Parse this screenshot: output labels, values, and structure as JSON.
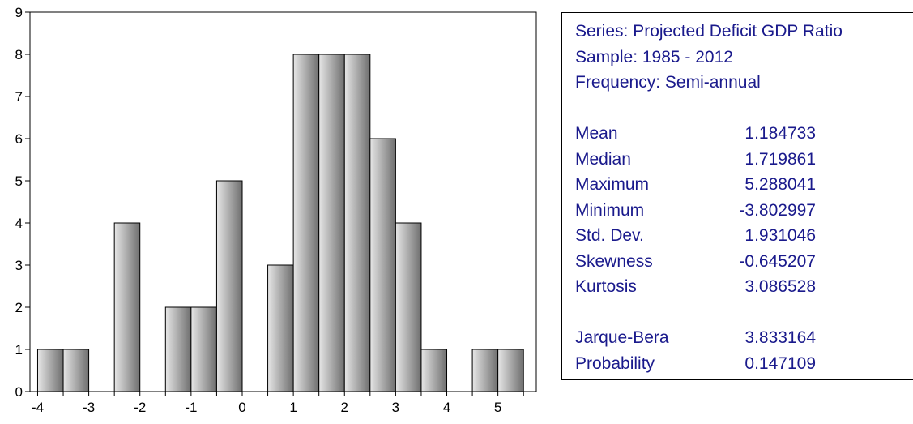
{
  "chart_data": {
    "type": "bar",
    "bins": [
      {
        "start": -4.0,
        "end": -3.5,
        "count": 1
      },
      {
        "start": -3.5,
        "end": -3.0,
        "count": 1
      },
      {
        "start": -3.0,
        "end": -2.5,
        "count": 0
      },
      {
        "start": -2.5,
        "end": -2.0,
        "count": 4
      },
      {
        "start": -2.0,
        "end": -1.5,
        "count": 0
      },
      {
        "start": -1.5,
        "end": -1.0,
        "count": 2
      },
      {
        "start": -1.0,
        "end": -0.5,
        "count": 2
      },
      {
        "start": -0.5,
        "end": 0.0,
        "count": 5
      },
      {
        "start": 0.0,
        "end": 0.5,
        "count": 0
      },
      {
        "start": 0.5,
        "end": 1.0,
        "count": 3
      },
      {
        "start": 1.0,
        "end": 1.5,
        "count": 8
      },
      {
        "start": 1.5,
        "end": 2.0,
        "count": 8
      },
      {
        "start": 2.0,
        "end": 2.5,
        "count": 8
      },
      {
        "start": 2.5,
        "end": 3.0,
        "count": 6
      },
      {
        "start": 3.0,
        "end": 3.5,
        "count": 4
      },
      {
        "start": 3.5,
        "end": 4.0,
        "count": 1
      },
      {
        "start": 4.0,
        "end": 4.5,
        "count": 0
      },
      {
        "start": 4.5,
        "end": 5.0,
        "count": 1
      },
      {
        "start": 5.0,
        "end": 5.5,
        "count": 1
      }
    ],
    "xlim": [
      -4.15,
      5.75
    ],
    "ylim": [
      0,
      9
    ],
    "x_ticks": [
      "-4",
      "-3",
      "-2",
      "-1",
      "0",
      "1",
      "2",
      "3",
      "4",
      "5"
    ],
    "y_ticks": [
      "0",
      "1",
      "2",
      "3",
      "4",
      "5",
      "6",
      "7",
      "8",
      "9"
    ],
    "grid": false,
    "bar_fill_light": "#e6e6e6",
    "bar_fill_dark": "#6e6e6e",
    "bar_edge": "#000000"
  },
  "stats_panel": {
    "header": [
      "Series: Projected Deficit GDP Ratio",
      "Sample: 1985 - 2012",
      "Frequency: Semi-annual"
    ],
    "stats": [
      {
        "label": "Mean",
        "value": "1.184733"
      },
      {
        "label": "Median",
        "value": "1.719861"
      },
      {
        "label": "Maximum",
        "value": "5.288041"
      },
      {
        "label": "Minimum",
        "value": "-3.802997"
      },
      {
        "label": "Std. Dev.",
        "value": "1.931046"
      },
      {
        "label": "Skewness",
        "value": "-0.645207"
      },
      {
        "label": "Kurtosis",
        "value": "3.086528"
      }
    ],
    "tests": [
      {
        "label": "Jarque-Bera",
        "value": "3.833164"
      },
      {
        "label": "Probability",
        "value": "0.147109"
      }
    ],
    "text_color": "#1a1a8c"
  }
}
